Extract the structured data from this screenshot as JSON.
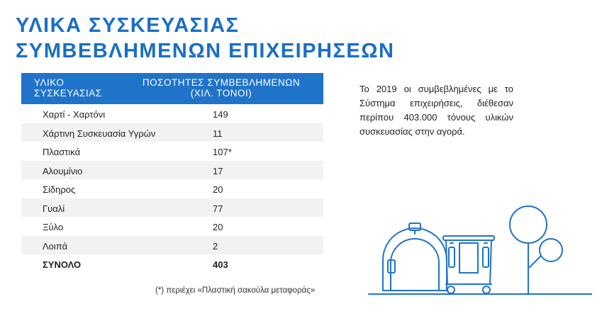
{
  "title": {
    "line1": "ΥΛΙΚΑ ΣΥΣΚΕΥΑΣΙΑΣ",
    "line2": "ΣΥΜΒΕΒΛΗΜΕΝΩΝ ΕΠΙΧΕΙΡΗΣΕΩΝ"
  },
  "table": {
    "headers": {
      "material_line1": "ΥΛΙΚΟ",
      "material_line2": "ΣΥΣΚΕΥΑΣΙΑΣ",
      "quantity_line1": "ΠΟΣΟΤΗΤΕΣ ΣΥΜΒΕΒΛΗΜΕΝΩΝ",
      "quantity_line2": "(ΧΙΛ. ΤΟΝΟΙ)"
    },
    "rows": [
      {
        "material": "Χαρτί - Χαρτόνι",
        "quantity": "149"
      },
      {
        "material": "Χάρτινη Συσκευασία Υγρών",
        "quantity": "11"
      },
      {
        "material": "Πλαστικά",
        "quantity": "107*"
      },
      {
        "material": "Αλουμίνιο",
        "quantity": "17"
      },
      {
        "material": "Σίδηρος",
        "quantity": "20"
      },
      {
        "material": "Γυαλί",
        "quantity": "77"
      },
      {
        "material": "Ξύλο",
        "quantity": "20"
      },
      {
        "material": "Λοιπά",
        "quantity": "2"
      },
      {
        "material": "ΣΥΝΟΛΟ",
        "quantity": "403"
      }
    ]
  },
  "footnote": "(*) περιέχει «Πλαστική σακούλα μεταφοράς»",
  "description": "Το 2019 οι συμβεβλημένες με το Σύστημα επιχειρήσεις, διέθεσαν περίπου 403.000 τόνους υλικών συσκευασίας στην αγορά.",
  "colors": {
    "accent": "#1f73c9",
    "title": "#1a6fc4",
    "row_alt": "#f2f2f2"
  }
}
